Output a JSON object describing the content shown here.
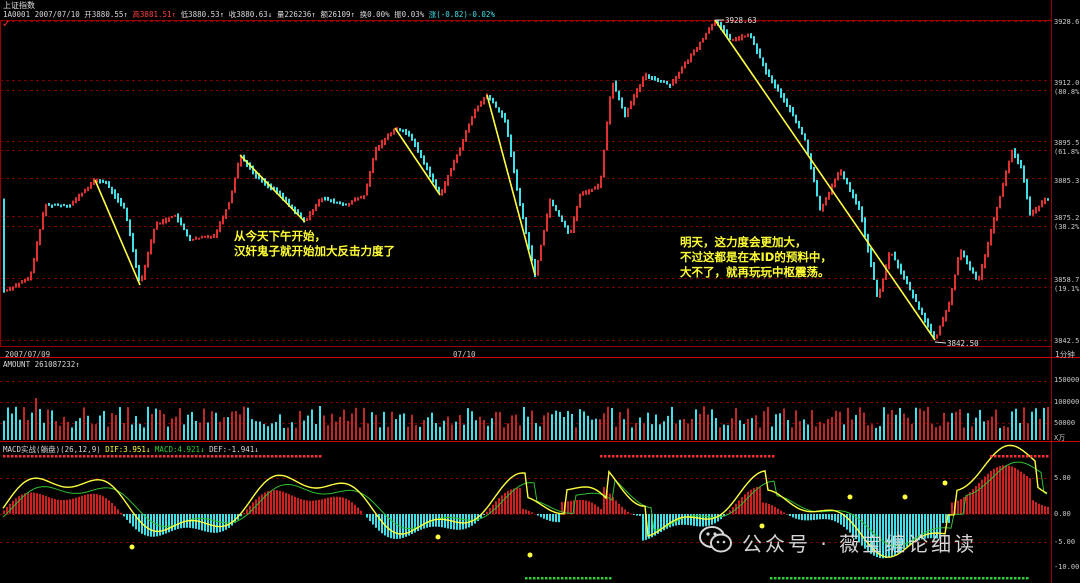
{
  "header": {
    "title": "上证指数",
    "code_date": "1A0001 2007/07/10",
    "open": "开3880.55↑",
    "high": "高3881.51↑",
    "low": "低3880.53↑",
    "close": "收3880.63↓",
    "volume": "量226236↑",
    "amount": "额26109↑",
    "turnover": "换0.00%",
    "amplitude": "振0.03%",
    "change": "涨(-0.82)-0.02%"
  },
  "price_axis": {
    "ticks": [
      "3928.6",
      "3912.0",
      "(80.8%)",
      "3895.5",
      "(61.8%)",
      "3885.3",
      "3875.2",
      "(38.2%)",
      "3858.7",
      "(19.1%)",
      "3842.5"
    ]
  },
  "markers": {
    "high": "3928.63",
    "low": "3842.50"
  },
  "annotations": {
    "left": "从今天下午开始，\n汉奸鬼子就开始加大反击力度了",
    "right": "明天，这力度会更加大，\n不过这都是在本ID的预料中，\n大不了，就再玩玩中枢震荡。"
  },
  "time_axis": {
    "start": "2007/07/09",
    "mid": "07/10",
    "period": "1分钟"
  },
  "volume_panel": {
    "label": "AMOUNT 261087232↑",
    "ticks": [
      "150000",
      "100000",
      "50000"
    ],
    "unit": "X万"
  },
  "macd_panel": {
    "label": "MACD实战(躺盘)(26,12,9)",
    "dif": "DIF:3.951↓",
    "macd": "MACD:4.921↓",
    "def": "DEF:-1.941↓",
    "ticks": [
      "5.00",
      "0.00",
      "-5.00",
      "-10.00"
    ]
  },
  "watermark": "公众号 · 薇宝缠论细读",
  "colors": {
    "up": "#e03030",
    "down": "#40e0e8",
    "grid": "#7a0000",
    "line_yellow": "#ffff40",
    "line_green": "#30c030"
  }
}
